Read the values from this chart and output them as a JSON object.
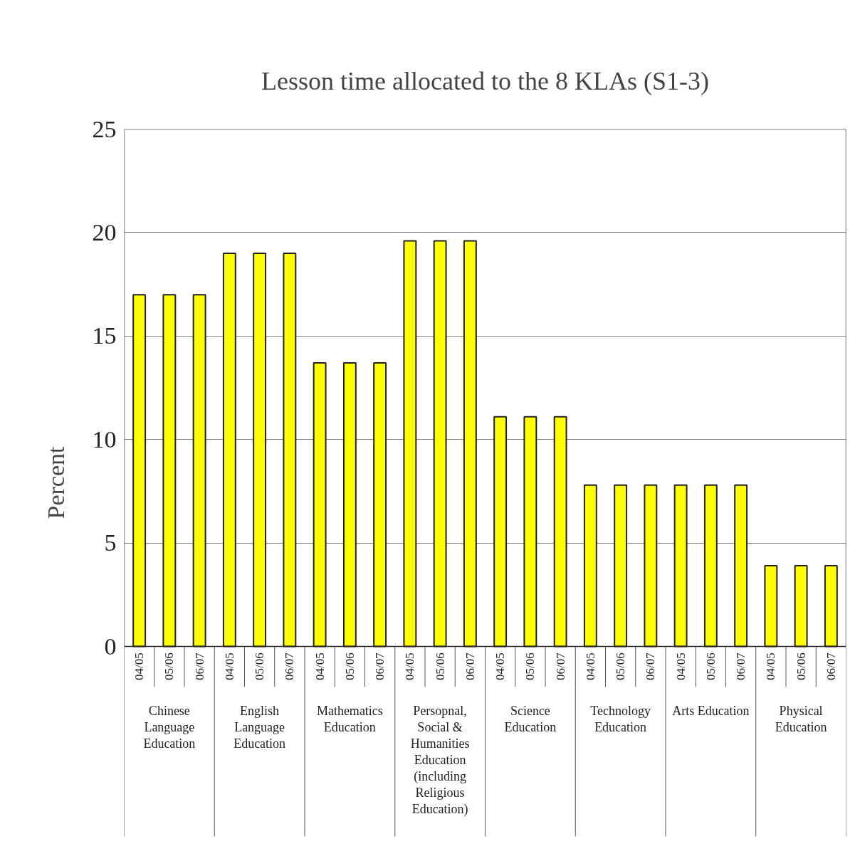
{
  "chart_data": {
    "type": "bar",
    "title": "Lesson time allocated to the 8 KLAs (S1-3)",
    "ylabel": "Percent",
    "categories": [
      "04/05",
      "05/06",
      "06/07",
      "04/05",
      "05/06",
      "06/07",
      "04/05",
      "05/06",
      "06/07",
      "04/05",
      "05/06",
      "06/07",
      "04/05",
      "05/06",
      "06/07",
      "04/05",
      "05/06",
      "06/07",
      "04/05",
      "05/06",
      "06/07",
      "04/05",
      "05/06",
      "06/07"
    ],
    "values": [
      17,
      17,
      17,
      19,
      19,
      19,
      13.7,
      13.7,
      13.7,
      19.6,
      19.6,
      19.6,
      11.1,
      11.1,
      11.1,
      7.8,
      7.8,
      7.8,
      7.8,
      7.8,
      7.8,
      3.9,
      3.9,
      3.9
    ],
    "color": "#ffff00",
    "ylim": [
      0,
      25
    ],
    "yticks": [
      0,
      5,
      10,
      15,
      20,
      25
    ],
    "grid": "y",
    "annotations": [
      "Chinese Language Education",
      "English Language Education",
      "Mathematics Education",
      "Persopnal, Social & Humanities Education (including Religious Education)",
      "Science Education",
      "Technology Education",
      "Arts Education",
      "Physical Education"
    ]
  }
}
